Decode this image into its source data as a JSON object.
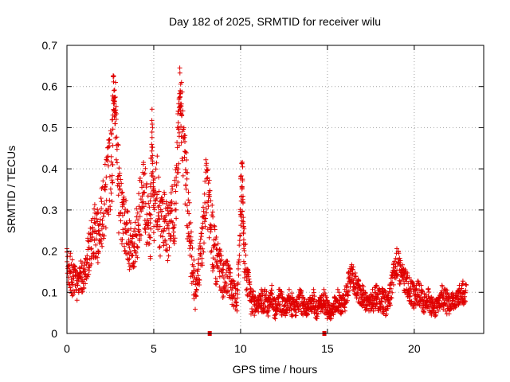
{
  "chart_data": {
    "type": "scatter",
    "title": "Day 182 of 2025, SRMTID for receiver wilu",
    "xlabel": "GPS time / hours",
    "ylabel": "SRMTID / TECUs",
    "xlim": [
      0,
      24
    ],
    "ylim": [
      0,
      0.7
    ],
    "xticks": [
      0,
      5,
      10,
      15,
      20
    ],
    "xtick_labels": [
      "0",
      "5",
      "10",
      "15",
      "20"
    ],
    "yticks": [
      0,
      0.1,
      0.2,
      0.3,
      0.4,
      0.5,
      0.6,
      0.7
    ],
    "ytick_labels": [
      "0",
      "0.1",
      "0.2",
      "0.3",
      "0.4",
      "0.5",
      "0.6",
      "0.7"
    ],
    "grid": true,
    "marker": "+",
    "color": "#e00000",
    "series": [
      {
        "name": "wilu",
        "x": [
          0.0,
          0.2,
          0.4,
          0.6,
          0.8,
          1.0,
          1.2,
          1.4,
          1.6,
          1.8,
          2.0,
          2.2,
          2.4,
          2.6,
          2.7,
          2.8,
          3.0,
          3.2,
          3.4,
          3.6,
          3.8,
          4.0,
          4.2,
          4.4,
          4.6,
          4.8,
          4.9,
          5.0,
          5.2,
          5.4,
          5.6,
          5.8,
          6.0,
          6.2,
          6.4,
          6.5,
          6.6,
          6.8,
          7.0,
          7.2,
          7.4,
          7.6,
          7.8,
          8.0,
          8.2,
          8.4,
          8.6,
          8.8,
          9.0,
          9.2,
          9.4,
          9.6,
          9.8,
          10.0,
          10.1,
          10.2,
          10.4,
          10.6,
          10.8,
          11.0,
          11.2,
          11.4,
          11.6,
          11.8,
          12.0,
          12.2,
          12.4,
          12.6,
          12.8,
          13.0,
          13.2,
          13.4,
          13.6,
          13.8,
          14.0,
          14.2,
          14.4,
          14.6,
          14.8,
          15.0,
          15.2,
          15.4,
          15.6,
          15.8,
          16.0,
          16.2,
          16.4,
          16.6,
          16.8,
          17.0,
          17.2,
          17.4,
          17.6,
          17.8,
          18.0,
          18.2,
          18.4,
          18.6,
          18.8,
          19.0,
          19.2,
          19.4,
          19.6,
          19.8,
          20.0,
          20.2,
          20.4,
          20.6,
          20.8,
          21.0,
          21.2,
          21.4,
          21.6,
          21.8,
          22.0,
          22.2,
          22.4,
          22.6,
          22.8
        ],
        "y": [
          0.17,
          0.15,
          0.13,
          0.12,
          0.14,
          0.13,
          0.18,
          0.22,
          0.25,
          0.24,
          0.28,
          0.33,
          0.38,
          0.42,
          0.58,
          0.52,
          0.33,
          0.28,
          0.26,
          0.22,
          0.19,
          0.24,
          0.3,
          0.33,
          0.3,
          0.25,
          0.5,
          0.28,
          0.35,
          0.26,
          0.28,
          0.24,
          0.27,
          0.3,
          0.45,
          0.6,
          0.52,
          0.4,
          0.28,
          0.18,
          0.1,
          0.16,
          0.22,
          0.35,
          0.3,
          0.22,
          0.18,
          0.16,
          0.13,
          0.14,
          0.12,
          0.1,
          0.08,
          0.3,
          0.38,
          0.2,
          0.12,
          0.08,
          0.07,
          0.07,
          0.08,
          0.08,
          0.07,
          0.09,
          0.06,
          0.08,
          0.07,
          0.06,
          0.08,
          0.07,
          0.06,
          0.08,
          0.07,
          0.06,
          0.07,
          0.08,
          0.06,
          0.07,
          0.08,
          0.06,
          0.05,
          0.07,
          0.08,
          0.07,
          0.08,
          0.12,
          0.14,
          0.12,
          0.1,
          0.09,
          0.08,
          0.07,
          0.08,
          0.09,
          0.08,
          0.08,
          0.07,
          0.09,
          0.14,
          0.17,
          0.15,
          0.13,
          0.12,
          0.1,
          0.09,
          0.1,
          0.09,
          0.07,
          0.08,
          0.07,
          0.06,
          0.07,
          0.09,
          0.08,
          0.07,
          0.08,
          0.08,
          0.09,
          0.1
        ],
        "spread": [
          0.04,
          0.05,
          0.04,
          0.03,
          0.04,
          0.04,
          0.05,
          0.06,
          0.07,
          0.06,
          0.08,
          0.09,
          0.1,
          0.11,
          0.05,
          0.1,
          0.08,
          0.07,
          0.07,
          0.06,
          0.05,
          0.07,
          0.08,
          0.09,
          0.07,
          0.08,
          0.05,
          0.08,
          0.09,
          0.07,
          0.07,
          0.07,
          0.08,
          0.08,
          0.1,
          0.05,
          0.1,
          0.09,
          0.07,
          0.05,
          0.03,
          0.05,
          0.07,
          0.08,
          0.08,
          0.07,
          0.06,
          0.05,
          0.04,
          0.04,
          0.04,
          0.03,
          0.03,
          0.09,
          0.04,
          0.06,
          0.04,
          0.03,
          0.02,
          0.02,
          0.03,
          0.03,
          0.02,
          0.03,
          0.02,
          0.03,
          0.02,
          0.02,
          0.03,
          0.02,
          0.02,
          0.03,
          0.02,
          0.02,
          0.02,
          0.03,
          0.02,
          0.02,
          0.03,
          0.02,
          0.02,
          0.02,
          0.03,
          0.02,
          0.03,
          0.03,
          0.03,
          0.03,
          0.03,
          0.03,
          0.02,
          0.02,
          0.03,
          0.03,
          0.03,
          0.03,
          0.02,
          0.03,
          0.03,
          0.04,
          0.03,
          0.03,
          0.03,
          0.03,
          0.03,
          0.03,
          0.03,
          0.02,
          0.03,
          0.02,
          0.02,
          0.02,
          0.03,
          0.03,
          0.02,
          0.02,
          0.02,
          0.03,
          0.03
        ]
      }
    ],
    "gap_markers_x": [
      8.2,
      14.8
    ]
  }
}
